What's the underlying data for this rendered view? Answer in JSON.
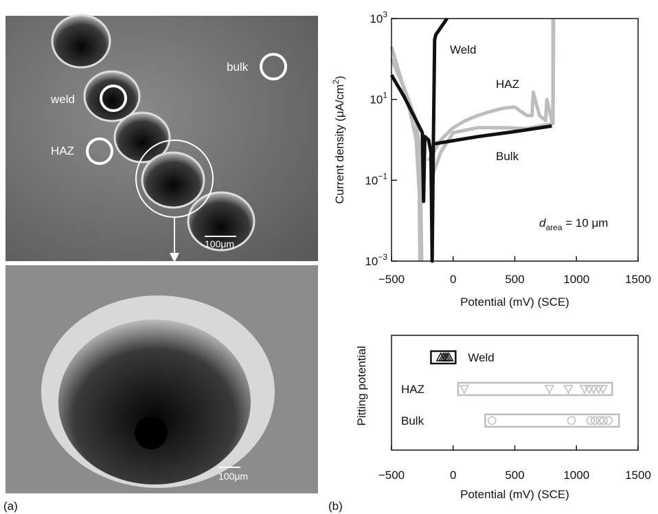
{
  "panel_labels": {
    "a": "(a)",
    "b": "(b)"
  },
  "micrographs": {
    "site_labels": [
      "bulk",
      "weld",
      "HAZ"
    ],
    "scale_bars": [
      "100μm",
      "100μm"
    ]
  },
  "chart_data": [
    {
      "type": "line",
      "x_label": "Potential (mV) (SCE)",
      "y_label": {
        "text": "Current density (μA/cm",
        "superscript": "2",
        "suffix": ")"
      },
      "log_y": true,
      "xlim": [
        -500,
        1500
      ],
      "xticks": [
        {
          "value": -500,
          "label": "−500"
        },
        0,
        500,
        1000,
        1500
      ],
      "ylim": [
        0.001,
        1000
      ],
      "yticks": [
        {
          "value": 0.001,
          "label": "10",
          "exponent": "−3"
        },
        {
          "value": 0.1,
          "label": "10",
          "exponent": "−1"
        },
        {
          "value": 10,
          "label": "10",
          "exponent": "1"
        },
        {
          "value": 1000,
          "label": "10",
          "exponent": "3"
        }
      ],
      "annotation": {
        "variable": "d",
        "subscript": "area",
        "text": " = 10 μm"
      },
      "series": [
        {
          "name": "HAZ",
          "color": "#bdbdbd",
          "x": [
            -500,
            -420,
            -350,
            -300,
            -275,
            -270,
            null,
            -200,
            -100,
            0,
            100,
            200,
            300,
            400,
            500,
            550,
            600,
            640,
            650,
            700,
            750,
            760,
            800,
            810,
            810
          ],
          "y": [
            200,
            30,
            5,
            1,
            0.05,
            0.001,
            null,
            0.3,
            1,
            2,
            3,
            4,
            5,
            6,
            6.5,
            5,
            4,
            4,
            15,
            4,
            3,
            10,
            3,
            3,
            1000
          ]
        },
        {
          "name": "Bulk",
          "color": "#bdbdbd",
          "x": [
            -500,
            -400,
            -300,
            -270,
            -260,
            -255,
            null,
            -180,
            -100,
            0,
            200,
            400,
            600,
            800,
            810,
            815
          ],
          "y": [
            100,
            20,
            3,
            0.5,
            0.01,
            0.001,
            null,
            0.1,
            0.5,
            1.5,
            2,
            2,
            1.9,
            2.5,
            2.5,
            1000
          ]
        },
        {
          "name": "Weld",
          "color": "#111111",
          "x": [
            -500,
            -400,
            -300,
            -250,
            -240,
            -230,
            -200,
            -180,
            -170,
            -160,
            -150,
            -140,
            -100,
            -50,
            null,
            -150,
            200,
            500,
            800
          ],
          "y": [
            40,
            12,
            3,
            1.5,
            0.03,
            1.2,
            1,
            0.5,
            0.001,
            1,
            300,
            400,
            600,
            1000,
            null,
            0.8,
            1.2,
            1.6,
            2.2
          ]
        }
      ]
    },
    {
      "type": "scatter",
      "x_label": "Potential (mV) (SCE)",
      "y_label": "Pitting potential",
      "xlim": [
        -500,
        1500
      ],
      "xticks": [
        {
          "value": -500,
          "label": "−500"
        },
        0,
        500,
        1000,
        1500
      ],
      "series": [
        {
          "name": "Weld",
          "color": "#111111",
          "marker": "triangle-up",
          "range": [
            -180,
            20
          ],
          "values": [
            -100,
            -80,
            -65,
            -50,
            -35
          ]
        },
        {
          "name": "HAZ",
          "color": "#bdbdbd",
          "marker": "triangle-down",
          "range": [
            40,
            1290
          ],
          "values": [
            90,
            780,
            935,
            1065,
            1105,
            1140,
            1180,
            1215
          ]
        },
        {
          "name": "Bulk",
          "color": "#bdbdbd",
          "marker": "circle",
          "range": [
            260,
            1345
          ],
          "values": [
            315,
            960,
            1115,
            1150,
            1190,
            1220,
            1260
          ]
        }
      ]
    }
  ]
}
